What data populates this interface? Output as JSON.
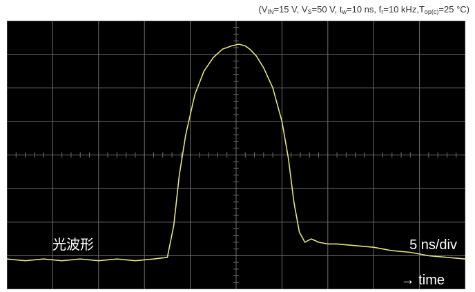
{
  "conditions": {
    "open_paren": "(",
    "vin_main": "V",
    "vin_sub": "IN",
    "vin_val": "=15 V, ",
    "vs_main": "V",
    "vs_sub": "S",
    "vs_val": "=50 V, ",
    "tw_main": "t",
    "tw_sub": "w",
    "tw_val": "=10 ns, ",
    "fr_main": "f",
    "fr_sub": "r",
    "fr_val": "=10 kHz,",
    "top_main": "T",
    "top_sub": "op(c)",
    "top_val": "=25 °C)"
  },
  "colors": {
    "screen": "#000000",
    "grid": "#6e6e6e",
    "trace": "#e6e67a",
    "text": "#ffffff"
  },
  "chart_data": {
    "type": "line",
    "title": "",
    "xlabel": "",
    "ylabel": "",
    "waveform_label": "光波形",
    "timebase_label": "5 ns/div",
    "time_arrow_label": "→ time",
    "grid": true,
    "divisions": {
      "x": 10,
      "y": 8
    },
    "xlim": [
      0,
      50
    ],
    "ylim": [
      0,
      8
    ],
    "units": {
      "x": "ns",
      "y": "div"
    },
    "series": [
      {
        "x": [
          0,
          2,
          4,
          6,
          8,
          10,
          12,
          14,
          16,
          17.5,
          18.2,
          18.8,
          19.5,
          20.5,
          21.5,
          22.5,
          23.5,
          24.5,
          25.3,
          26,
          26.5,
          27.2,
          28,
          29,
          30,
          30.7,
          31.3,
          31.9,
          32.5,
          33.2,
          34,
          35,
          36,
          38,
          40,
          42,
          44,
          46,
          48,
          50
        ],
        "y": [
          0.9,
          0.85,
          0.9,
          0.85,
          0.9,
          0.85,
          0.9,
          0.85,
          0.9,
          0.95,
          1.9,
          3.4,
          4.6,
          5.8,
          6.5,
          6.9,
          7.15,
          7.25,
          7.3,
          7.25,
          7.15,
          6.95,
          6.6,
          6.0,
          5.0,
          3.9,
          2.6,
          1.7,
          1.4,
          1.5,
          1.4,
          1.35,
          1.35,
          1.3,
          1.25,
          1.15,
          1.1,
          1.0,
          0.95,
          0.9
        ]
      }
    ]
  }
}
